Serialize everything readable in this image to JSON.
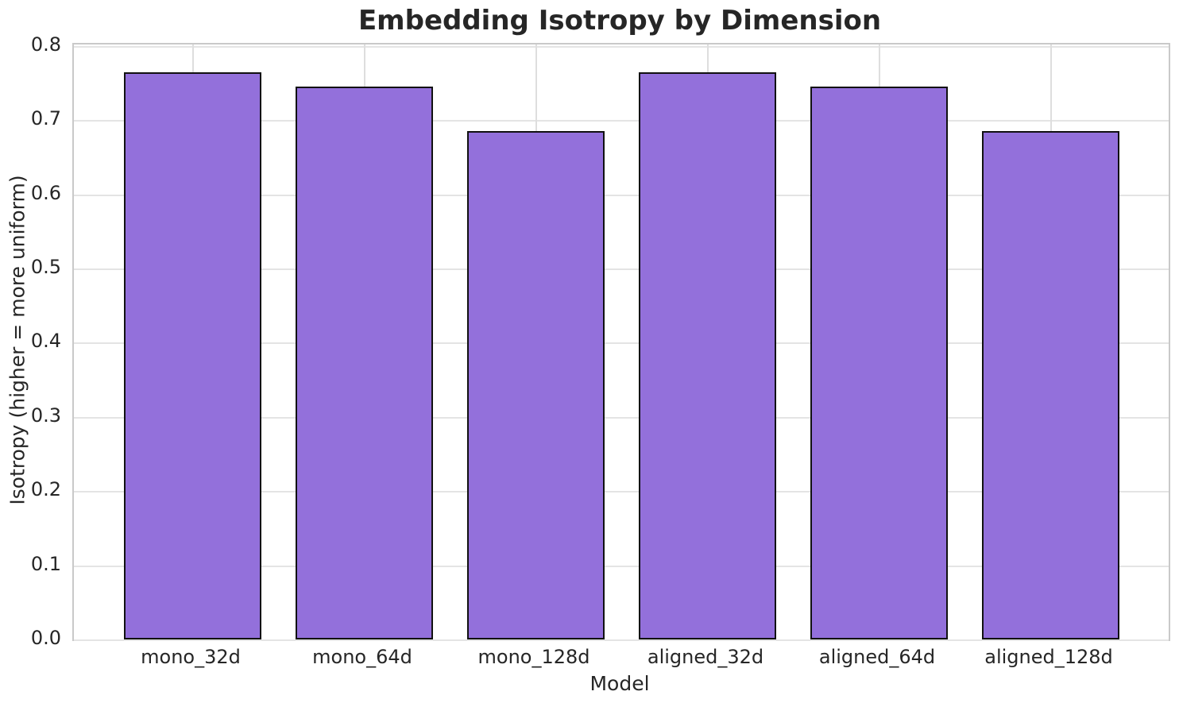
{
  "chart_data": {
    "type": "bar",
    "title": "Embedding Isotropy by Dimension",
    "xlabel": "Model",
    "ylabel": "Isotropy (higher = more uniform)",
    "categories": [
      "mono_32d",
      "mono_64d",
      "mono_128d",
      "aligned_32d",
      "aligned_64d",
      "aligned_128d"
    ],
    "values": [
      0.765,
      0.745,
      0.685,
      0.765,
      0.745,
      0.685
    ],
    "ylim": [
      0,
      0.8
    ],
    "y_ticks": [
      "0.0",
      "0.1",
      "0.2",
      "0.3",
      "0.4",
      "0.5",
      "0.6",
      "0.7",
      "0.8"
    ],
    "grid": "both",
    "legend_position": "none",
    "colors": {
      "bar_fill": "#9370DB",
      "bar_edge": "#111111",
      "grid_h": "#e4e4e4",
      "grid_v": "#dedede",
      "spine": "#c9c9c9",
      "text": "#262626"
    }
  }
}
